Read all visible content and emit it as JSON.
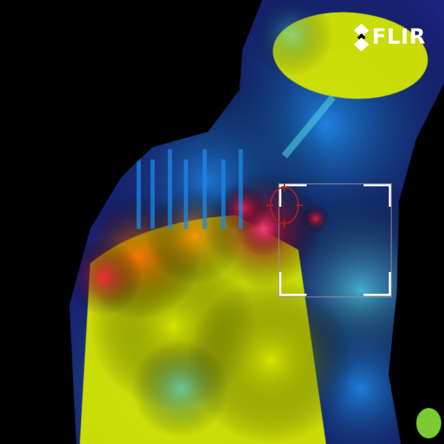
{
  "brand": {
    "logo_text": "FLIR",
    "logo_icon": "flir-diamond-icon"
  },
  "palette": {
    "name": "rainbow",
    "cold": "#1a237e",
    "cool": "#1e88e5",
    "mid": "#4dd0e1",
    "warm": "#d4e600",
    "hot": "#ff1744"
  },
  "measurement": {
    "spot_icon": "spot-meter-icon",
    "box_icon": "measurement-box-icon"
  }
}
